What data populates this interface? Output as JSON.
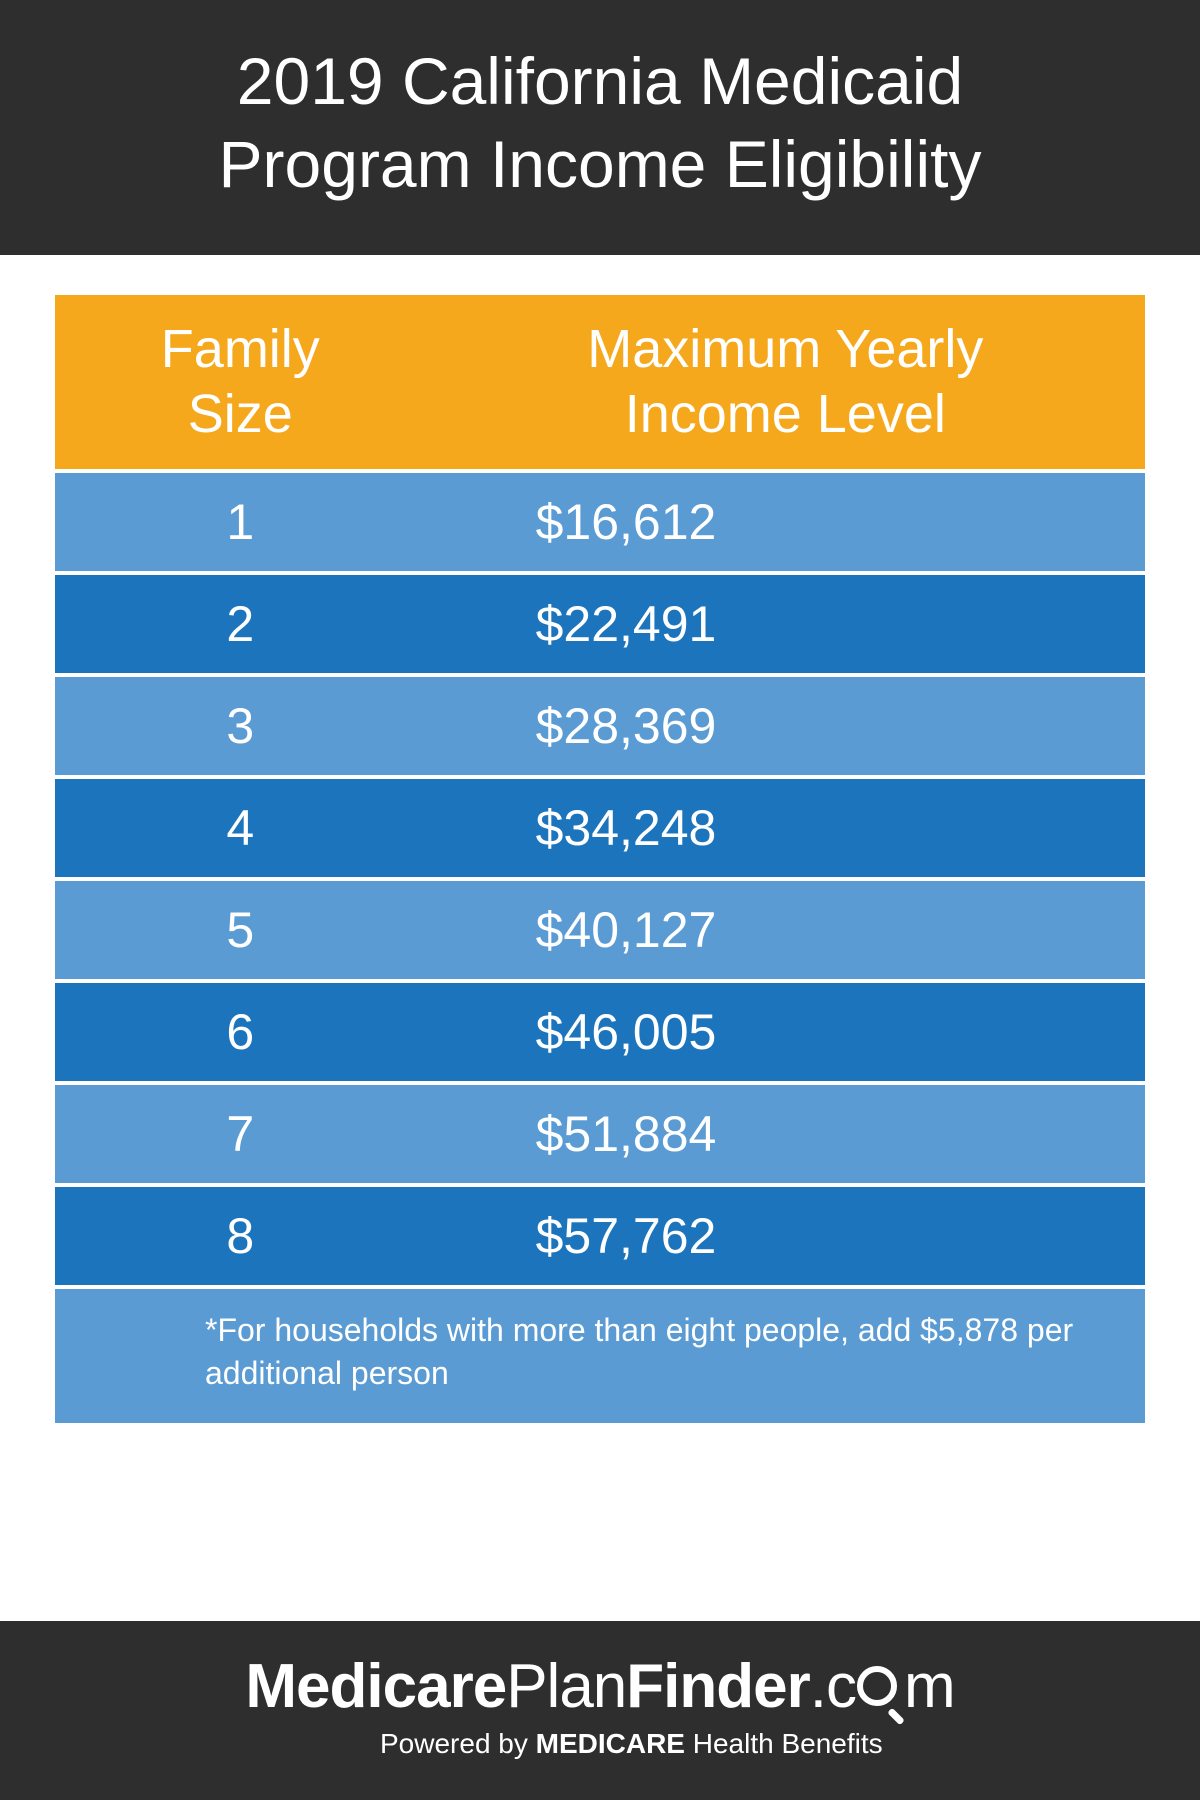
{
  "header": {
    "title_line1": "2019 California Medicaid",
    "title_line2": "Program Income Eligibility"
  },
  "table": {
    "type": "table",
    "header_bg": "#f6a81c",
    "row_colors": [
      "#5a9bd4",
      "#1c75bc"
    ],
    "text_color": "#ffffff",
    "header_fontsize": 54,
    "row_fontsize": 50,
    "columns": [
      {
        "label_line1": "Family",
        "label_line2": "Size",
        "width_pct": 34,
        "align": "center"
      },
      {
        "label_line1": "Maximum Yearly",
        "label_line2": "Income Level",
        "width_pct": 66,
        "align": "left"
      }
    ],
    "rows": [
      {
        "size": "1",
        "income": "$16,612"
      },
      {
        "size": "2",
        "income": "$22,491"
      },
      {
        "size": "3",
        "income": "$28,369"
      },
      {
        "size": "4",
        "income": "$34,248"
      },
      {
        "size": "5",
        "income": "$40,127"
      },
      {
        "size": "6",
        "income": "$46,005"
      },
      {
        "size": "7",
        "income": "$51,884"
      },
      {
        "size": "8",
        "income": "$57,762"
      }
    ],
    "footnote": "*For households with more than eight people, add $5,878 per additional person"
  },
  "footer": {
    "logo_parts": {
      "p1": "Medicare",
      "p2": "Plan",
      "p3": "Finder",
      "p4": ".c",
      "p5": "m"
    },
    "tagline_prefix": "Powered by ",
    "tagline_strong": "MEDICARE",
    "tagline_rest": " Health Benefits"
  },
  "colors": {
    "header_bg": "#2e2e2e",
    "page_bg": "#ffffff",
    "footer_bg": "#2e2e2e"
  }
}
